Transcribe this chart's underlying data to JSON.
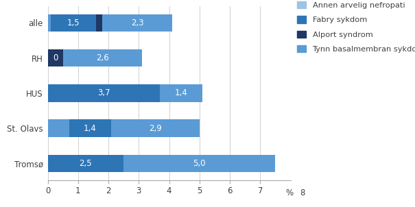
{
  "categories": [
    "Tromsø",
    "St. Olavs",
    "HUS",
    "RH",
    "alle"
  ],
  "series": {
    "Annen arvelig nefropati": {
      "color": "#5b9bd5",
      "values": [
        0.0,
        0.7,
        0.0,
        0.0,
        0.1
      ],
      "labels": [
        "",
        "",
        "",
        "",
        ""
      ]
    },
    "Fabry sykdom": {
      "color": "#2e75b6",
      "values": [
        2.5,
        1.4,
        3.7,
        0.0,
        1.5
      ],
      "labels": [
        "2,5",
        "1,4",
        "3,7",
        "",
        "1,5"
      ]
    },
    "Alport syndrom": {
      "color": "#1f3864",
      "values": [
        0.0,
        0.0,
        0.0,
        0.5,
        0.2
      ],
      "labels": [
        "",
        "",
        "",
        "0",
        ""
      ]
    },
    "Tynn basalmembran sykdom": {
      "color": "#5b9bd5",
      "values": [
        5.0,
        2.9,
        1.4,
        2.6,
        2.3
      ],
      "labels": [
        "5,0",
        "2,9",
        "1,4",
        "2,6",
        "2,3"
      ]
    }
  },
  "stack_order": [
    "Annen arvelig nefropati",
    "Fabry sykdom",
    "Alport syndrom",
    "Tynn basalmembran sykdom"
  ],
  "legend_order": [
    "Annen arvelig nefropati",
    "Fabry sykdom",
    "Alport syndrom",
    "Tynn basalmembran sykdom"
  ],
  "legend_colors": {
    "Annen arvelig nefropati": "#9dc3e6",
    "Fabry sykdom": "#2e75b6",
    "Alport syndrom": "#1f3864",
    "Tynn basalmembran sykdom": "#5b9bd5"
  },
  "xlim": [
    0,
    8
  ],
  "bar_height": 0.5,
  "background_color": "#ffffff",
  "text_color": "#404040",
  "font_size": 8.5
}
